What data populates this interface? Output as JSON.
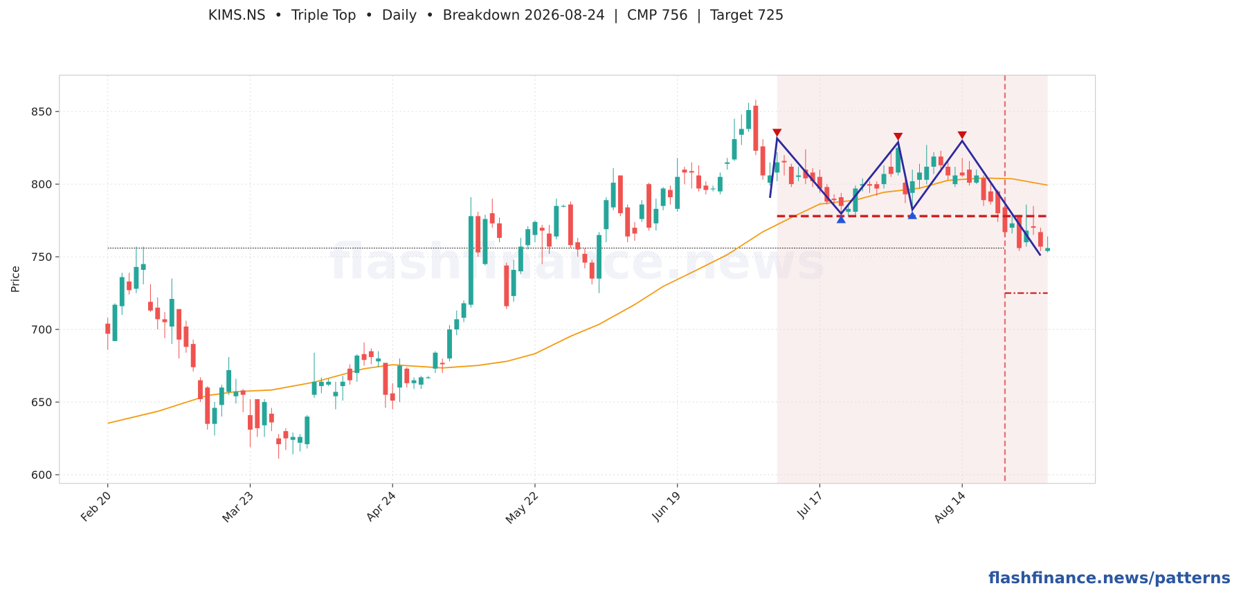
{
  "chart_data": {
    "type": "candlestick",
    "title": "KIMS.NS  •  Triple Top  •  Daily  •  Breakdown 2026-08-24  |  CMP 756  |  Target 725",
    "ylabel": "Price",
    "watermark": "flashfinance.news",
    "footer": "flashfinance.news/patterns",
    "xlim": [
      -6.8,
      138.7
    ],
    "xticks": [
      {
        "value": 0,
        "label": "Feb 20"
      },
      {
        "value": 20,
        "label": "Mar 23"
      },
      {
        "value": 40,
        "label": "Apr 24"
      },
      {
        "value": 60,
        "label": "May 22"
      },
      {
        "value": 80,
        "label": "Jun 19"
      },
      {
        "value": 100,
        "label": "Jul 17"
      },
      {
        "value": 120,
        "label": "Aug 14"
      }
    ],
    "ylim": [
      594,
      875
    ],
    "yticks": [
      600,
      650,
      700,
      750,
      800,
      850
    ],
    "grid": true,
    "up_color": "#26a69a",
    "down_color": "#ef5350",
    "open": [
      704,
      692,
      716,
      733,
      728,
      741,
      719,
      715,
      707,
      702,
      714,
      702,
      690,
      665,
      660,
      635,
      648,
      657,
      654,
      658,
      641,
      652,
      634,
      642,
      625,
      630,
      624,
      622,
      621,
      655,
      661,
      662,
      654,
      661,
      673,
      670,
      683,
      685,
      678,
      677,
      656,
      660,
      673,
      663,
      662,
      667,
      673,
      677,
      680,
      700,
      708,
      717,
      778,
      745,
      780,
      773,
      744,
      723,
      740,
      758,
      765,
      770,
      766,
      764,
      785,
      786,
      760,
      752,
      746,
      735,
      769,
      784,
      806,
      784,
      770,
      776,
      800,
      773,
      785,
      796,
      783,
      810,
      809,
      806,
      799,
      797,
      795,
      814,
      817,
      834,
      838,
      854,
      826,
      801,
      808,
      816,
      812,
      805,
      810,
      808,
      805,
      798,
      790,
      791,
      781,
      781,
      799,
      800,
      800,
      800,
      812,
      808,
      801,
      794,
      803,
      803,
      812,
      819,
      812,
      800,
      808,
      810,
      801,
      804,
      795,
      795,
      784,
      770,
      778,
      760,
      771,
      767,
      754
    ],
    "high": [
      708,
      718,
      739,
      739,
      757,
      757,
      731,
      722,
      712,
      735,
      714,
      706,
      693,
      667,
      661,
      650,
      662,
      681,
      666,
      659,
      652,
      652,
      652,
      646,
      628,
      632,
      629,
      628,
      641,
      684,
      667,
      666,
      664,
      668,
      676,
      683,
      691,
      687,
      685,
      677,
      663,
      680,
      674,
      667,
      668,
      668,
      685,
      680,
      703,
      713,
      720,
      791,
      781,
      779,
      790,
      777,
      746,
      748,
      763,
      771,
      775,
      772,
      772,
      790,
      786,
      788,
      763,
      756,
      748,
      767,
      791,
      811,
      806,
      786,
      774,
      789,
      801,
      790,
      798,
      799,
      818,
      812,
      815,
      813,
      802,
      799,
      808,
      818,
      845,
      848,
      856,
      858,
      831,
      815,
      822,
      820,
      814,
      812,
      824,
      811,
      810,
      800,
      793,
      794,
      786,
      799,
      804,
      802,
      802,
      813,
      822,
      831,
      804,
      810,
      814,
      827,
      822,
      823,
      817,
      812,
      818,
      816,
      810,
      806,
      800,
      796,
      787,
      779,
      779,
      786,
      785,
      770,
      764
    ],
    "low": [
      686,
      692,
      710,
      724,
      725,
      731,
      712,
      700,
      694,
      690,
      680,
      684,
      671,
      650,
      631,
      627,
      640,
      655,
      649,
      643,
      619,
      626,
      626,
      630,
      611,
      617,
      614,
      616,
      618,
      653,
      656,
      661,
      645,
      651,
      662,
      664,
      675,
      676,
      674,
      646,
      645,
      650,
      660,
      659,
      659,
      666,
      670,
      670,
      678,
      696,
      705,
      715,
      750,
      744,
      770,
      760,
      714,
      719,
      738,
      755,
      760,
      745,
      752,
      762,
      784,
      756,
      750,
      742,
      731,
      725,
      760,
      782,
      778,
      760,
      761,
      774,
      768,
      768,
      782,
      786,
      781,
      800,
      797,
      795,
      793,
      795,
      793,
      810,
      816,
      827,
      836,
      820,
      803,
      799,
      802,
      806,
      798,
      802,
      800,
      798,
      794,
      786,
      786,
      778,
      778,
      778,
      795,
      794,
      792,
      797,
      805,
      806,
      787,
      784,
      797,
      800,
      807,
      808,
      803,
      798,
      805,
      799,
      800,
      785,
      786,
      774,
      764,
      766,
      754,
      757,
      765,
      754,
      753
    ],
    "close": [
      697,
      717,
      736,
      727,
      743,
      745,
      713,
      707,
      705,
      721,
      693,
      688,
      674,
      652,
      635,
      646,
      660,
      672,
      657,
      655,
      631,
      632,
      650,
      636,
      621,
      625,
      626,
      626,
      640,
      664,
      664,
      664,
      657,
      664,
      665,
      682,
      679,
      681,
      680,
      655,
      651,
      675,
      663,
      665,
      667,
      667,
      684,
      676,
      700,
      707,
      718,
      778,
      753,
      776,
      773,
      763,
      716,
      741,
      757,
      769,
      774,
      768,
      757,
      785,
      785,
      758,
      755,
      746,
      735,
      765,
      789,
      801,
      780,
      764,
      766,
      786,
      770,
      783,
      797,
      791,
      805,
      808,
      808,
      797,
      796,
      797,
      805,
      815,
      831,
      838,
      851,
      823,
      806,
      806,
      815,
      815,
      800,
      806,
      804,
      802,
      797,
      788,
      789,
      785,
      783,
      797,
      800,
      799,
      797,
      807,
      807,
      825,
      793,
      802,
      808,
      812,
      819,
      813,
      806,
      806,
      806,
      801,
      806,
      789,
      788,
      780,
      767,
      773,
      756,
      768,
      770,
      757,
      756
    ],
    "sma": {
      "color": "#f39c12",
      "x": [
        0,
        7,
        14,
        18,
        23,
        29,
        36,
        40,
        47,
        52,
        56,
        60,
        65,
        69,
        74,
        78,
        83,
        87,
        92,
        96,
        100,
        105,
        109,
        114,
        118,
        123,
        127,
        132
      ],
      "values": [
        635.4,
        643.6,
        654.5,
        657.2,
        658.3,
        663.7,
        673,
        675.7,
        673.5,
        675.2,
        678,
        683.3,
        695.3,
        703.5,
        717.1,
        729.6,
        741.6,
        751.4,
        767.2,
        777,
        786.3,
        789,
        794.4,
        797.2,
        802.6,
        804.2,
        803.7,
        799.3
      ]
    },
    "cmp": {
      "value": 756,
      "x": [
        0,
        126
      ]
    },
    "pattern_region": {
      "x": [
        94,
        132
      ],
      "color": "#f3d6d6"
    },
    "breakdown_x": 126,
    "neckline": {
      "value": 778,
      "x": [
        94,
        132
      ],
      "color": "#cc2222"
    },
    "target": {
      "value": 725,
      "x": [
        126,
        132
      ]
    },
    "zigzag": {
      "color": "#2e2a9e",
      "x": [
        93,
        94,
        103,
        111,
        113,
        120,
        131
      ],
      "values": [
        790.6,
        831.5,
        779.7,
        828.8,
        782.5,
        829.8,
        750.9
      ],
      "peaks": [
        1,
        3,
        5
      ],
      "troughs": [
        2,
        4
      ]
    }
  }
}
